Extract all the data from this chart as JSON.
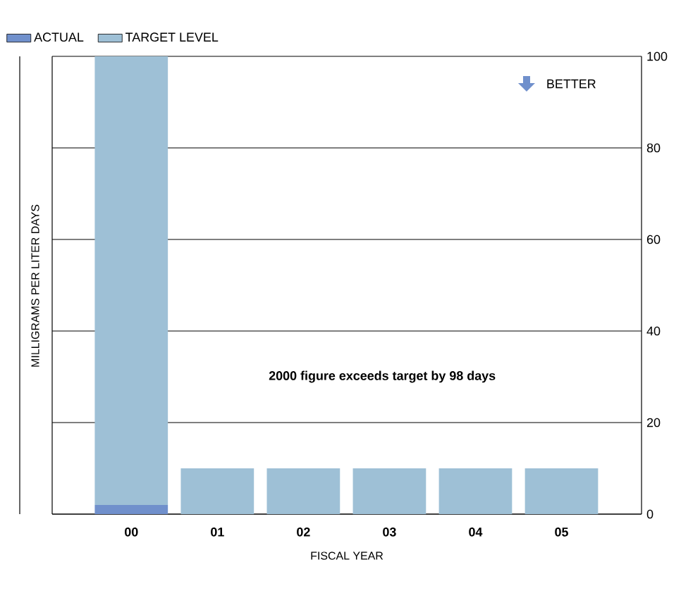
{
  "chart_data": {
    "type": "bar",
    "stacked": true,
    "categories": [
      "00",
      "01",
      "02",
      "03",
      "04",
      "05"
    ],
    "series": [
      {
        "name": "ACTUAL",
        "color": "#7090cc",
        "values": [
          2,
          null,
          null,
          null,
          null,
          null
        ]
      },
      {
        "name": "TARGET LEVEL",
        "color": "#9ec0d6",
        "values": [
          98,
          10,
          10,
          10,
          10,
          10
        ]
      }
    ],
    "ylim": [
      0,
      100
    ],
    "yticks": [
      0,
      20,
      40,
      60,
      80,
      100
    ],
    "grid": "y",
    "legend": "top left",
    "xlabel": "FISCAL YEAR",
    "ylabel": "MILLIGRAMS PER LITER DAYS",
    "annotations": [
      "BETTER",
      "2000 figure exceeds target by 98 days"
    ]
  }
}
